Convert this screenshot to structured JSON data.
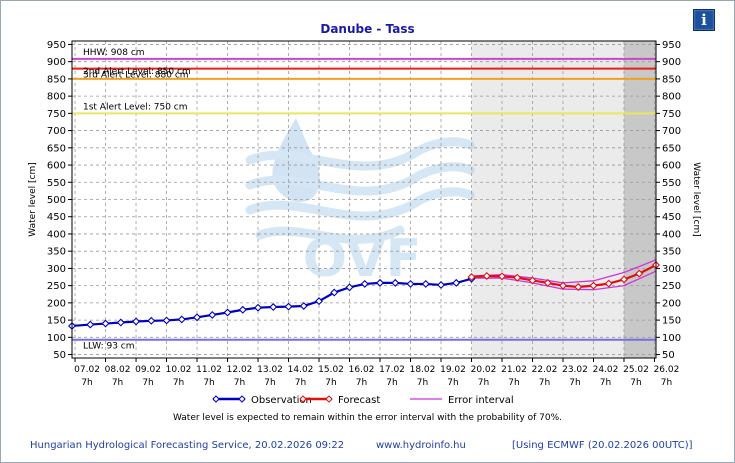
{
  "chart_data": {
    "type": "line",
    "title": "Danube - Tass",
    "ylabel_left": "Water level [cm]",
    "ylabel_right": "Water level [cm]",
    "ylim": [
      40,
      960
    ],
    "yticks": [
      50,
      100,
      150,
      200,
      250,
      300,
      350,
      400,
      450,
      500,
      550,
      600,
      650,
      700,
      750,
      800,
      850,
      900,
      950
    ],
    "xlim_days": [
      -0.1,
      19.05
    ],
    "x_ticks": [
      {
        "date": "07.02",
        "hour": "7h"
      },
      {
        "date": "08.02",
        "hour": "7h"
      },
      {
        "date": "09.02",
        "hour": "7h"
      },
      {
        "date": "10.02",
        "hour": "7h"
      },
      {
        "date": "11.02",
        "hour": "7h"
      },
      {
        "date": "12.02",
        "hour": "7h"
      },
      {
        "date": "13.02",
        "hour": "7h"
      },
      {
        "date": "14.02",
        "hour": "7h"
      },
      {
        "date": "15.02",
        "hour": "7h"
      },
      {
        "date": "16.02",
        "hour": "7h"
      },
      {
        "date": "17.02",
        "hour": "7h"
      },
      {
        "date": "18.02",
        "hour": "7h"
      },
      {
        "date": "19.02",
        "hour": "7h"
      },
      {
        "date": "20.02",
        "hour": "7h"
      },
      {
        "date": "21.02",
        "hour": "7h"
      },
      {
        "date": "22.02",
        "hour": "7h"
      },
      {
        "date": "23.02",
        "hour": "7h"
      },
      {
        "date": "24.02",
        "hour": "7h"
      },
      {
        "date": "25.02",
        "hour": "7h"
      },
      {
        "date": "26.02",
        "hour": "7h"
      }
    ],
    "reference_lines": [
      {
        "label": "HHW: 908 cm",
        "value": 908,
        "color": "#cc44cc"
      },
      {
        "label": "3rd Alert Level: 880 cm",
        "value": 880,
        "color": "#e8201a"
      },
      {
        "label": "2nd Alert Level: 850 cm",
        "value": 850,
        "color": "#f2a020"
      },
      {
        "label": "1st Alert Level: 750 cm",
        "value": 750,
        "color": "#e8e860"
      },
      {
        "label": "LLW: 93 cm",
        "value": 93,
        "color": "#7070e0"
      }
    ],
    "forecast_region_start_day": 13.0,
    "darker_region_start_day": 18.0,
    "series": [
      {
        "name": "Observation",
        "color": "#0000c0",
        "x": [
          -0.1,
          0.5,
          1,
          1.5,
          2,
          2.5,
          3,
          3.5,
          4,
          4.5,
          5,
          5.5,
          6,
          6.5,
          7,
          7.5,
          8,
          8.5,
          9,
          9.5,
          10,
          10.5,
          11,
          11.5,
          12,
          12.5,
          13
        ],
        "y": [
          133,
          137,
          140,
          143,
          146,
          148,
          149,
          152,
          158,
          165,
          172,
          180,
          186,
          188,
          189,
          191,
          205,
          230,
          245,
          255,
          258,
          258,
          255,
          255,
          252,
          258,
          270
        ]
      },
      {
        "name": "Forecast",
        "color": "#e01010",
        "x": [
          13,
          13.5,
          14,
          14.5,
          15,
          15.5,
          16,
          16.5,
          17,
          17.5,
          18,
          18.5,
          19.05
        ],
        "y": [
          275,
          278,
          277,
          273,
          265,
          258,
          250,
          246,
          250,
          256,
          268,
          285,
          310
        ]
      }
    ],
    "error_interval": {
      "name": "Error interval",
      "color": "#cc33dd",
      "x": [
        13,
        14,
        15,
        16,
        17,
        18,
        19.05
      ],
      "upper": [
        278,
        282,
        272,
        258,
        264,
        288,
        325
      ],
      "lower": [
        272,
        272,
        258,
        240,
        238,
        250,
        292
      ]
    },
    "legend_position": "bottom",
    "note": "Water level is expected to remain within the error interval with the probability of 70%.",
    "watermark": "OVF"
  },
  "footer": {
    "left": "Hungarian Hydrological Forecasting Service, 20.02.2026 09:22",
    "center": "www.hydroinfo.hu",
    "right": "[Using ECMWF (20.02.2026  00UTC)]"
  },
  "info_icon": "i"
}
